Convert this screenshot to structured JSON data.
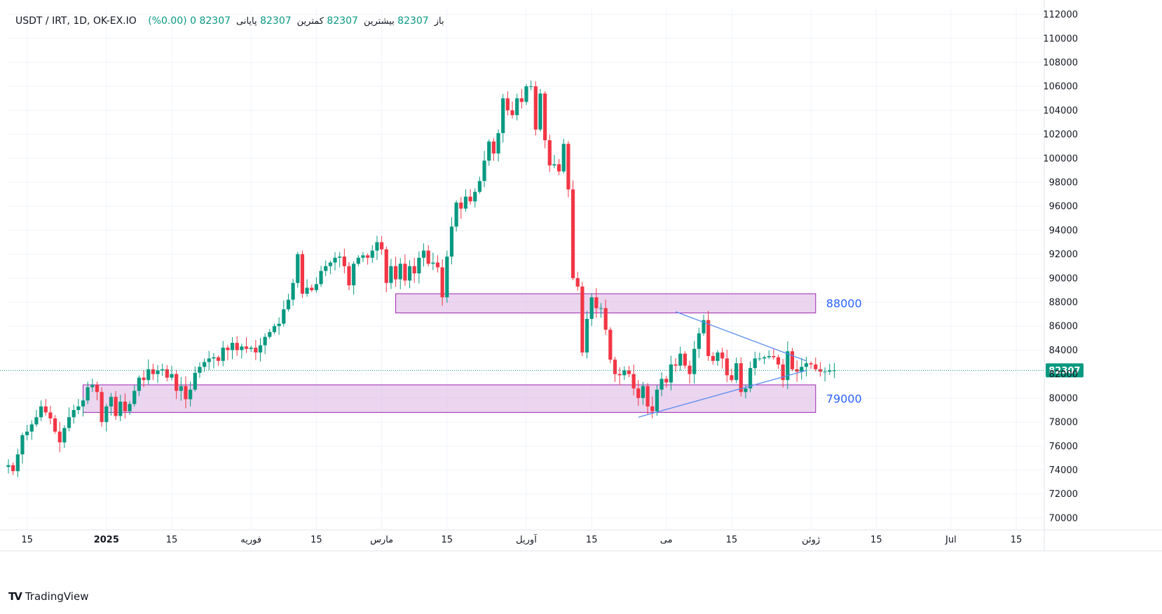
{
  "header": {
    "symbol": "USDT / IRT, 1D, OK-EX.IO",
    "open_label": "باز",
    "open_value": "82307",
    "high_label": "بیشترین",
    "high_value": "82307",
    "low_label": "کمترین",
    "low_value": "82307",
    "close_label": "پایانی",
    "close_value": "82307",
    "change": "0 (0.00%)"
  },
  "footer": {
    "brand": "TradingView"
  },
  "colors": {
    "up": "#089981",
    "down": "#f23645",
    "zone_fill": "#e1bee7",
    "zone_stroke": "#9c27b0",
    "trendline": "#5b8def",
    "grid": "#f0f3fa"
  },
  "chart_data": {
    "type": "candlestick",
    "title": "USDT / IRT, 1D, OK-EX.IO",
    "ylim": [
      69000,
      112500
    ],
    "yticks": [
      70000,
      72000,
      74000,
      76000,
      78000,
      80000,
      82000,
      84000,
      86000,
      88000,
      90000,
      92000,
      94000,
      96000,
      98000,
      100000,
      102000,
      104000,
      106000,
      108000,
      110000,
      112000
    ],
    "xlim": [
      "2024-12-11",
      "2025-07-21"
    ],
    "xticks": [
      {
        "date": "2024-12-15",
        "label": "15"
      },
      {
        "date": "2025-01-01",
        "label": "2025"
      },
      {
        "date": "2025-01-15",
        "label": "15"
      },
      {
        "date": "2025-02-01",
        "label": "فوریه"
      },
      {
        "date": "2025-02-15",
        "label": "15"
      },
      {
        "date": "2025-03-01",
        "label": "مارس"
      },
      {
        "date": "2025-03-15",
        "label": "15"
      },
      {
        "date": "2025-04-01",
        "label": "آوریل"
      },
      {
        "date": "2025-04-15",
        "label": "15"
      },
      {
        "date": "2025-05-01",
        "label": "می"
      },
      {
        "date": "2025-05-15",
        "label": "15"
      },
      {
        "date": "2025-06-01",
        "label": "ژوئن"
      },
      {
        "date": "2025-06-15",
        "label": "15"
      },
      {
        "date": "2025-07-01",
        "label": "Jul"
      },
      {
        "date": "2025-07-15",
        "label": "15"
      }
    ],
    "start_date": "2024-12-11",
    "closes": [
      74400,
      73900,
      75300,
      76900,
      77200,
      77800,
      78400,
      79300,
      78800,
      78300,
      77200,
      76300,
      77500,
      78400,
      79000,
      79300,
      79800,
      80900,
      81100,
      80500,
      78000,
      79300,
      80100,
      78500,
      79700,
      78900,
      79500,
      80600,
      81700,
      81500,
      82400,
      82000,
      82300,
      82400,
      81700,
      82000,
      80600,
      81000,
      79900,
      80700,
      82100,
      82600,
      83000,
      83300,
      83400,
      83100,
      84200,
      84000,
      84600,
      84000,
      84300,
      84100,
      84200,
      83800,
      84400,
      85100,
      85500,
      86000,
      86200,
      87400,
      88200,
      89600,
      92000,
      88700,
      89200,
      89000,
      89500,
      90600,
      91000,
      91300,
      91700,
      91800,
      91000,
      89400,
      91200,
      91700,
      91900,
      91700,
      92300,
      93000,
      92400,
      89600,
      91000,
      89900,
      91200,
      89800,
      91000,
      90400,
      91700,
      92300,
      91200,
      91300,
      90900,
      88400,
      91800,
      94300,
      96300,
      95800,
      96800,
      96400,
      97200,
      98100,
      99800,
      101400,
      100400,
      102100,
      105000,
      104000,
      103600,
      105000,
      104700,
      106000,
      106000,
      102400,
      105400,
      101500,
      99400,
      99500,
      98900,
      101200,
      97400,
      90000,
      89300,
      83800,
      86600,
      88400,
      87500,
      87500,
      85700,
      83200,
      82000,
      81900,
      82300,
      82000,
      80800,
      80000,
      81000,
      79300,
      78900,
      80700,
      81600,
      81300,
      82800,
      82700,
      83700,
      82700,
      82000,
      84100,
      85400,
      86500,
      83500,
      83100,
      83800,
      83300,
      81900,
      81500,
      82900,
      80500,
      80800,
      82500,
      83300,
      83300,
      83400,
      83500,
      83400,
      82800,
      81500,
      83900,
      82400,
      82200,
      82600,
      82900,
      82800,
      82400,
      82200,
      82200,
      82300,
      82307
    ]
  },
  "zones": [
    {
      "label": "88000",
      "from": "2025-03-04",
      "to": "2025-06-02",
      "low": 87100,
      "high": 88700
    },
    {
      "label": "79000",
      "from": "2024-12-27",
      "to": "2025-06-02",
      "low": 78800,
      "high": 81100
    }
  ],
  "trendlines": [
    {
      "from_date": "2025-05-03",
      "from_value": 87200,
      "to_date": "2025-05-31",
      "to_value": 83100
    },
    {
      "from_date": "2025-04-25",
      "from_value": 78400,
      "to_date": "2025-05-31",
      "to_value": 82300
    }
  ],
  "last_price": {
    "value": 82307,
    "label": "82307"
  }
}
